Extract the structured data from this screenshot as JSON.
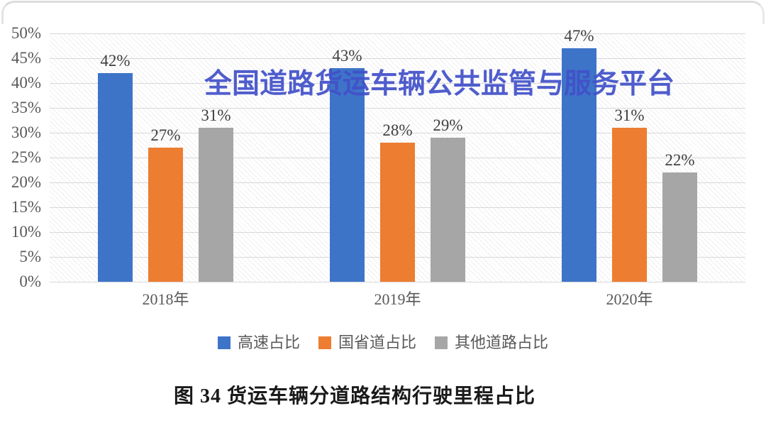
{
  "figure": {
    "watermark": "全国道路货运车辆公共监管与服务平台",
    "caption": "图 34 货运车辆分道路结构行驶里程占比"
  },
  "chart_data": {
    "type": "bar",
    "title": "",
    "categories": [
      "2018年",
      "2019年",
      "2020年"
    ],
    "series": [
      {
        "name": "高速占比",
        "color": "#3E74C8",
        "values": [
          42,
          43,
          47
        ]
      },
      {
        "name": "国省道占比",
        "color": "#ED7D31",
        "values": [
          27,
          28,
          31
        ]
      },
      {
        "name": "其他道路占比",
        "color": "#A6A6A6",
        "values": [
          31,
          29,
          22
        ]
      }
    ],
    "value_suffix": "%",
    "ylim": [
      0,
      50
    ],
    "ytick_step": 5,
    "grid": true,
    "legend_position": "bottom",
    "plot_background": "diagonal-hatch",
    "colors": {
      "grid": "#D8D8D8",
      "tick_text": "#595959",
      "value_label_text": "#3F3F3F",
      "watermark_text": "#4251CA",
      "caption_text": "#1A1A1A"
    }
  }
}
